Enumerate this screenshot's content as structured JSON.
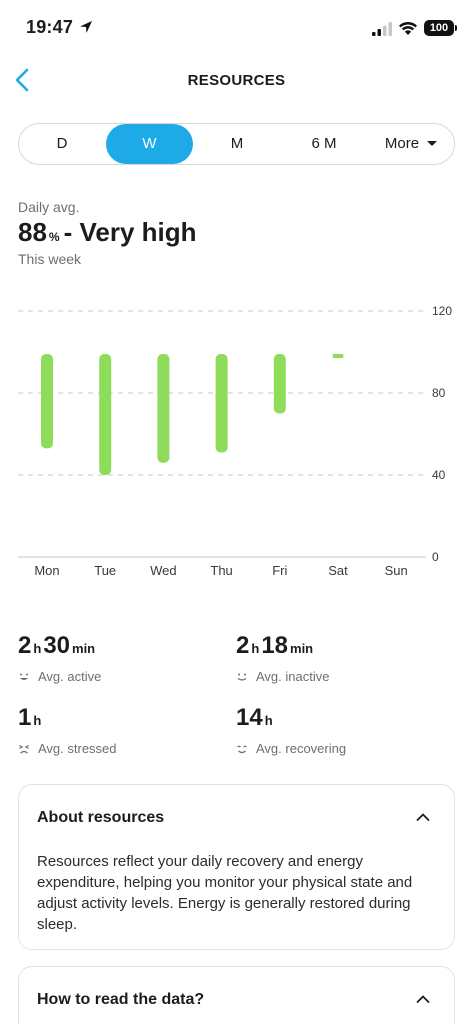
{
  "status_bar": {
    "time": "19:47",
    "battery": "100"
  },
  "header": {
    "title": "RESOURCES"
  },
  "period_tabs": [
    {
      "label": "D",
      "active": false
    },
    {
      "label": "W",
      "active": true
    },
    {
      "label": "M",
      "active": false
    },
    {
      "label": "6 M",
      "active": false
    },
    {
      "label": "More",
      "active": false
    }
  ],
  "summary": {
    "label": "Daily avg.",
    "value": "88",
    "unit": "%",
    "level": "- Very high",
    "period": "This week"
  },
  "chart_data": {
    "type": "bar",
    "categories": [
      "Mon",
      "Tue",
      "Wed",
      "Thu",
      "Fri",
      "Sat",
      "Sun"
    ],
    "ranges": [
      {
        "day": "Mon",
        "low": 53,
        "high": 99
      },
      {
        "day": "Tue",
        "low": 40,
        "high": 99
      },
      {
        "day": "Wed",
        "low": 46,
        "high": 99
      },
      {
        "day": "Thu",
        "low": 51,
        "high": 99
      },
      {
        "day": "Fri",
        "low": 70,
        "high": 99
      },
      {
        "day": "Sat",
        "low": 97,
        "high": 99
      },
      {
        "day": "Sun",
        "low": null,
        "high": null
      }
    ],
    "yticks": [
      "120",
      "80",
      "40",
      "0"
    ],
    "ylim": [
      0,
      120
    ],
    "grid": true,
    "color": "#8fdc5a"
  },
  "stats": [
    {
      "h": "2",
      "h_unit": "h",
      "m": "30",
      "m_unit": "min",
      "label": "Avg. active",
      "icon": "smile-icon"
    },
    {
      "h": "2",
      "h_unit": "h",
      "m": "18",
      "m_unit": "min",
      "label": "Avg. inactive",
      "icon": "neutral-face-icon"
    },
    {
      "h": "1",
      "h_unit": "h",
      "m": "",
      "m_unit": "",
      "label": "Avg. stressed",
      "icon": "stressed-face-icon"
    },
    {
      "h": "14",
      "h_unit": "h",
      "m": "",
      "m_unit": "",
      "label": "Avg. recovering",
      "icon": "calm-face-icon"
    }
  ],
  "about": {
    "title": "About resources",
    "body": "Resources reflect your daily recovery and energy expenditure, helping you monitor your physical state and adjust activity levels. Energy is generally restored during sleep."
  },
  "how_to": {
    "title": "How to read the data?"
  },
  "colors": {
    "accent": "#1eaae7",
    "bar": "#8fdc5a"
  }
}
